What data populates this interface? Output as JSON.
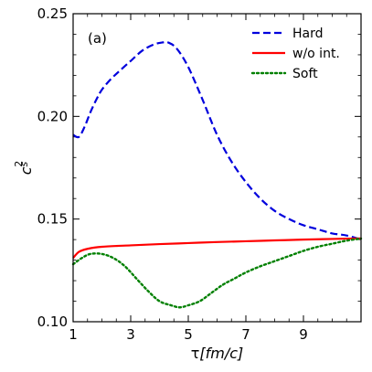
{
  "chart_data": {
    "type": "line",
    "panel_label": "(a)",
    "xlabel_symbol": "τ",
    "xlabel_unit": "[fm/c]",
    "ylabel_base": "c",
    "ylabel_sup": "2",
    "ylabel_sub": "s",
    "xlim": [
      1,
      11
    ],
    "ylim": [
      0.1,
      0.25
    ],
    "x_ticks": [
      1,
      3,
      5,
      7,
      9
    ],
    "x_tick_labels": [
      "1",
      "3",
      "5",
      "7",
      "9"
    ],
    "y_ticks": [
      0.1,
      0.15,
      0.2,
      0.25
    ],
    "y_tick_labels": [
      "0.10",
      "0.15",
      "0.20",
      "0.25"
    ],
    "legend_position": "top-right",
    "series": [
      {
        "name": "Hard",
        "color": "#0000dd",
        "style": "dashed",
        "x": [
          1.0,
          1.2,
          1.4,
          1.6,
          1.8,
          2.0,
          2.3,
          2.6,
          3.0,
          3.4,
          3.8,
          4.1,
          4.3,
          4.6,
          5.0,
          5.5,
          6.0,
          6.5,
          7.0,
          7.5,
          8.0,
          8.5,
          9.0,
          9.5,
          10.0,
          10.5,
          11.0
        ],
        "y": [
          0.191,
          0.19,
          0.195,
          0.202,
          0.208,
          0.213,
          0.218,
          0.222,
          0.227,
          0.232,
          0.235,
          0.236,
          0.236,
          0.233,
          0.224,
          0.208,
          0.191,
          0.178,
          0.168,
          0.16,
          0.154,
          0.15,
          0.147,
          0.145,
          0.143,
          0.142,
          0.14
        ]
      },
      {
        "name": "w/o int.",
        "color": "#ff0000",
        "style": "solid",
        "x": [
          1.0,
          1.2,
          1.5,
          2.0,
          3.0,
          4.0,
          5.0,
          6.0,
          7.0,
          8.0,
          9.0,
          10.0,
          11.0
        ],
        "y": [
          0.131,
          0.134,
          0.1355,
          0.1365,
          0.1372,
          0.1378,
          0.1383,
          0.1388,
          0.1392,
          0.1396,
          0.14,
          0.1403,
          0.1406
        ]
      },
      {
        "name": "Soft",
        "color": "#008000",
        "style": "dotted",
        "x": [
          1.0,
          1.3,
          1.6,
          2.0,
          2.4,
          2.8,
          3.2,
          3.6,
          4.0,
          4.4,
          4.7,
          5.0,
          5.4,
          5.8,
          6.2,
          6.6,
          7.0,
          7.5,
          8.0,
          8.5,
          9.0,
          9.5,
          10.0,
          10.5,
          11.0
        ],
        "y": [
          0.128,
          0.131,
          0.133,
          0.133,
          0.131,
          0.127,
          0.121,
          0.115,
          0.11,
          0.108,
          0.107,
          0.108,
          0.11,
          0.114,
          0.118,
          0.121,
          0.124,
          0.127,
          0.1295,
          0.132,
          0.1345,
          0.1365,
          0.138,
          0.1395,
          0.1405
        ]
      }
    ]
  }
}
